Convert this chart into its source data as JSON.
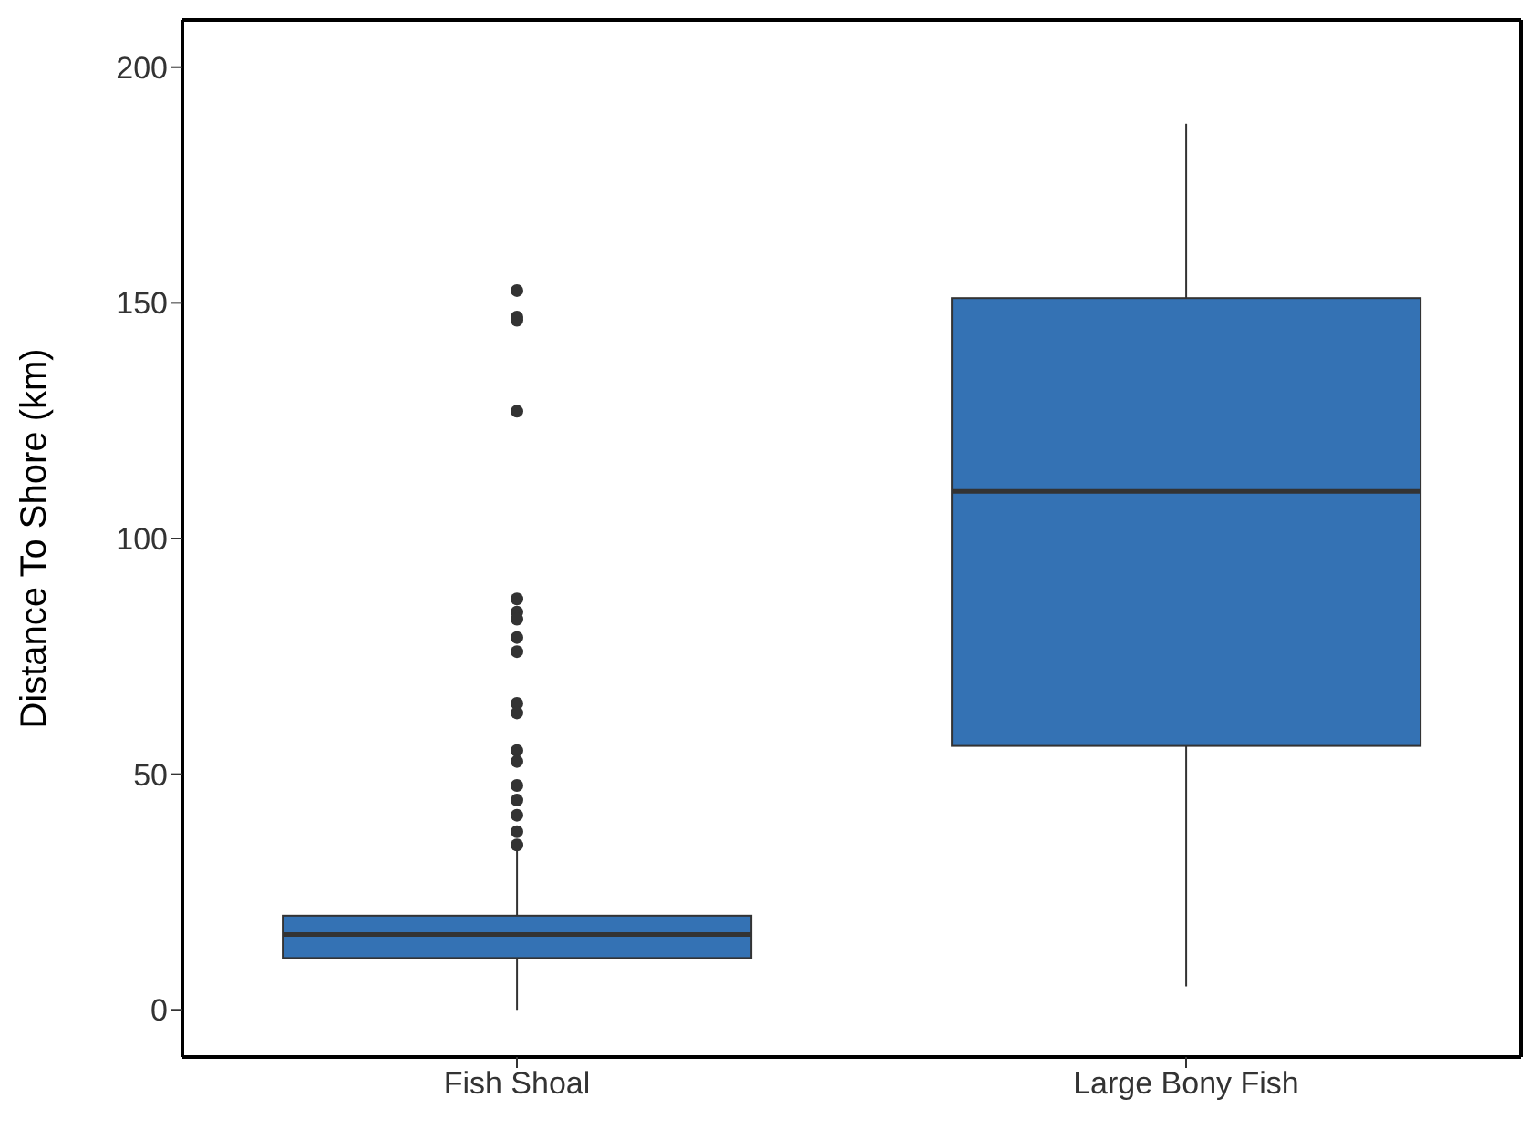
{
  "chart_data": {
    "type": "box",
    "ylabel": "Distance To Shore (km)",
    "categories": [
      "Fish Shoal",
      "Large Bony Fish"
    ],
    "color": "#3472b4",
    "boxes": [
      {
        "low": 0,
        "q1": 11,
        "median": 16,
        "q3": 20,
        "high": 34,
        "outliers": [
          152.6,
          147,
          146.3,
          127,
          87.2,
          84.4,
          82.9,
          79,
          76,
          65,
          63,
          55,
          52.7,
          47.6,
          44.5,
          41.3,
          37.8,
          35
        ]
      },
      {
        "low": 5,
        "q1": 56,
        "median": 110,
        "q3": 151,
        "high": 188
      }
    ],
    "ylim": [
      -10,
      210
    ],
    "yticks": [
      0,
      50,
      100,
      150,
      200
    ],
    "grid": false
  }
}
